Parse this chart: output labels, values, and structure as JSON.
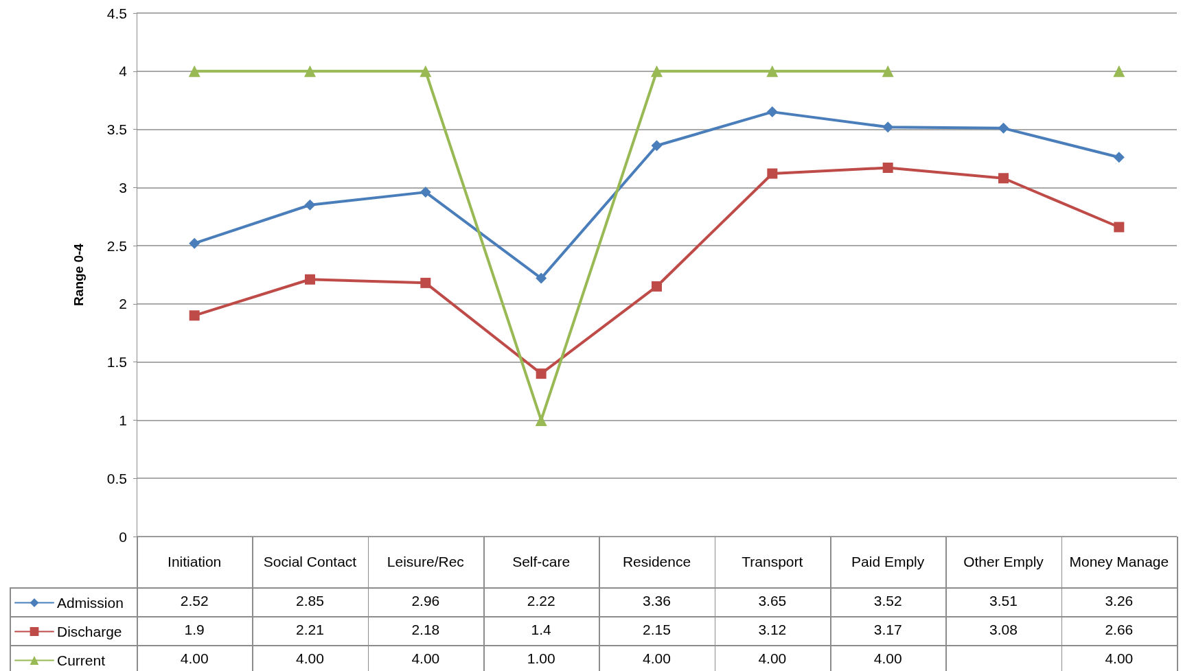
{
  "chart_data": {
    "type": "line",
    "ylabel": "Range 0-4",
    "categories": [
      "Initiation",
      "Social Contact",
      "Leisure/Rec",
      "Self-care",
      "Residence",
      "Transport",
      "Paid Emply",
      "Other Emply",
      "Money Manage"
    ],
    "series": [
      {
        "name": "Admission",
        "color": "#4a7ebb",
        "marker": "diamond",
        "values": [
          2.52,
          2.85,
          2.96,
          2.22,
          3.36,
          3.65,
          3.52,
          3.51,
          3.26
        ],
        "value_labels": [
          "2.52",
          "2.85",
          "2.96",
          "2.22",
          "3.36",
          "3.65",
          "3.52",
          "3.51",
          "3.26"
        ]
      },
      {
        "name": "Discharge",
        "color": "#be4b48",
        "marker": "square",
        "values": [
          1.9,
          2.21,
          2.18,
          1.4,
          2.15,
          3.12,
          3.17,
          3.08,
          2.66
        ],
        "value_labels": [
          "1.9",
          "2.21",
          "2.18",
          "1.4",
          "2.15",
          "3.12",
          "3.17",
          "3.08",
          "2.66"
        ]
      },
      {
        "name": "Current",
        "color": "#98b954",
        "marker": "triangle",
        "values": [
          4.0,
          4.0,
          4.0,
          1.0,
          4.0,
          4.0,
          4.0,
          null,
          4.0
        ],
        "value_labels": [
          "4.00",
          "4.00",
          "4.00",
          "1.00",
          "4.00",
          "4.00",
          "4.00",
          null,
          "4.00"
        ]
      }
    ],
    "ylim": [
      0,
      4.5
    ],
    "yticks": [
      0,
      0.5,
      1,
      1.5,
      2,
      2.5,
      3,
      3.5,
      4,
      4.5
    ],
    "grid": "y",
    "legend": "bottom",
    "line_style": "solid"
  }
}
